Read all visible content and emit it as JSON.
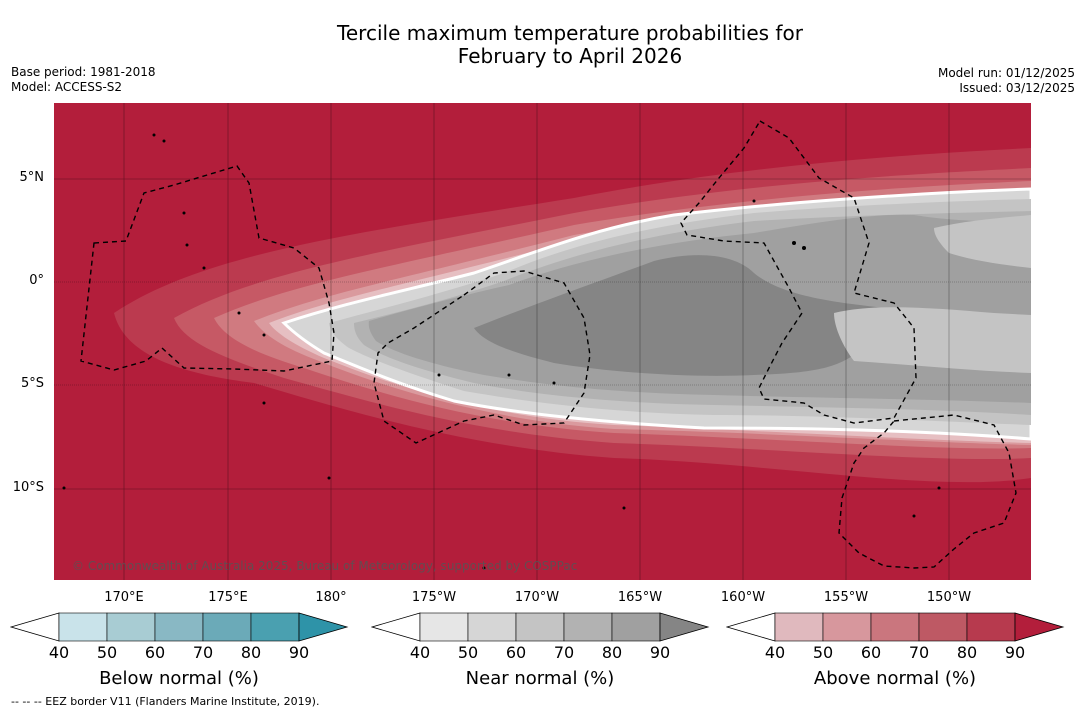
{
  "title": {
    "line1": "Tercile maximum temperature probabilities for",
    "line2": "February to April 2026"
  },
  "meta_left": {
    "base_period": "Base period: 1981-2018",
    "model": "Model: ACCESS-S2"
  },
  "meta_right": {
    "model_run": "Model run: 01/12/2025",
    "issued": "Issued: 03/12/2025"
  },
  "map": {
    "lat_labels": [
      "5°N",
      "0°",
      "5°S",
      "10°S"
    ],
    "lon_labels": [
      "170°E",
      "175°E",
      "180°",
      "175°W",
      "170°W",
      "165°W",
      "160°W",
      "155°W",
      "150°W"
    ],
    "copyright": "© Commonwealth of Australia 2025, Bureau of Meteorology, supported by COSPPac",
    "colors": {
      "above_90": "#b31e3b",
      "above_80": "#bb3a4f",
      "above_70": "#c65965",
      "above_60": "#d07a80",
      "above_50": "#da9a9e",
      "above_40": "#e6bfc2",
      "near_40": "#e6e6e6",
      "near_50": "#d6d6d6",
      "near_60": "#c4c4c4",
      "near_70": "#b2b2b2",
      "near_80": "#a0a0a0",
      "near_90": "#858585"
    }
  },
  "colorbars": [
    {
      "label": "Below normal (%)",
      "ticks": [
        "40",
        "50",
        "60",
        "70",
        "80",
        "90"
      ],
      "colors": [
        "#c9e3ea",
        "#a8ccd3",
        "#89b8c4",
        "#6baab8",
        "#4aa0b0",
        "#2e93a8"
      ]
    },
    {
      "label": "Near normal (%)",
      "ticks": [
        "40",
        "50",
        "60",
        "70",
        "80",
        "90"
      ],
      "colors": [
        "#e6e6e6",
        "#d6d6d6",
        "#c4c4c4",
        "#b2b2b2",
        "#a0a0a0",
        "#858585"
      ]
    },
    {
      "label": "Above normal (%)",
      "ticks": [
        "40",
        "50",
        "60",
        "70",
        "80",
        "90"
      ],
      "colors": [
        "#e0b9be",
        "#d7979d",
        "#ca767e",
        "#be5964",
        "#b73a4e",
        "#b31e3b"
      ]
    }
  ],
  "footer": "--  --  -- EEZ border V11 (Flanders Marine Institute, 2019)."
}
